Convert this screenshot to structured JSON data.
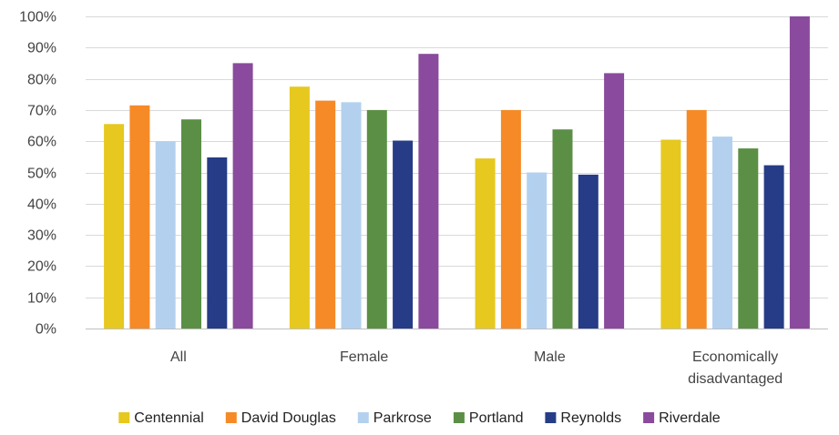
{
  "chart_data": {
    "type": "bar",
    "title": "",
    "xlabel": "",
    "ylabel": "",
    "categories": [
      [
        "All"
      ],
      [
        "Female"
      ],
      [
        "Male"
      ],
      [
        "Economically",
        "disadvantaged"
      ]
    ],
    "series": [
      {
        "name": "Centennial",
        "color": "#e6c81f",
        "values": [
          65.5,
          77.5,
          54.5,
          60.5
        ]
      },
      {
        "name": "David Douglas",
        "color": "#f58a26",
        "values": [
          71.5,
          73.0,
          70.0,
          70.0
        ]
      },
      {
        "name": "Parkrose",
        "color": "#b3d1ef",
        "values": [
          60.0,
          72.5,
          50.0,
          61.5
        ]
      },
      {
        "name": "Portland",
        "color": "#5b8f45",
        "values": [
          67.0,
          70.0,
          63.8,
          57.7
        ]
      },
      {
        "name": "Reynolds",
        "color": "#263c86",
        "values": [
          54.8,
          60.2,
          49.3,
          52.3
        ]
      },
      {
        "name": "Riverdale",
        "color": "#8a4a9d",
        "values": [
          85.0,
          88.0,
          81.8,
          100.0
        ]
      }
    ],
    "ylim": [
      0,
      100
    ],
    "yticks": [
      0,
      10,
      20,
      30,
      40,
      50,
      60,
      70,
      80,
      90,
      100
    ],
    "ytick_suffix": "%",
    "grid": true,
    "legend_position": "bottom"
  }
}
